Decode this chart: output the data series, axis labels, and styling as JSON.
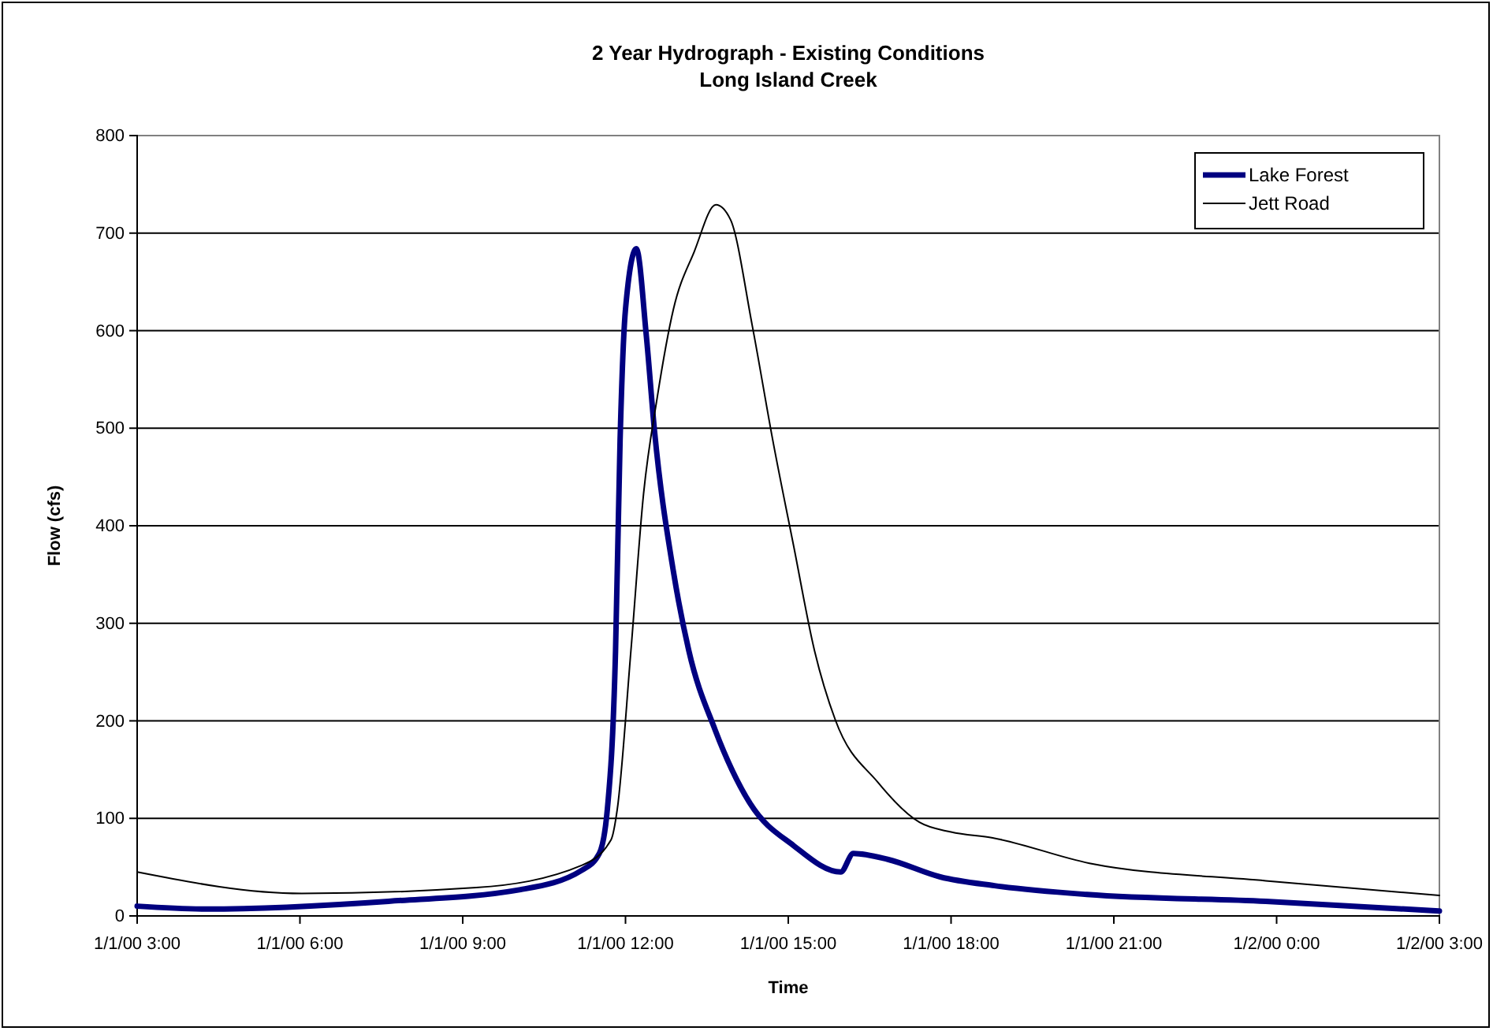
{
  "chart_data": {
    "type": "line",
    "title": "2 Year Hydrograph - Existing Conditions",
    "subtitle": "Long Island Creek",
    "xlabel": "Time",
    "ylabel": "Flow (cfs)",
    "xlim": [
      "2000-01-01T03:00",
      "2000-01-02T03:00"
    ],
    "xticks": [
      {
        "value": "2000-01-01T03:00",
        "label": "1/1/00 3:00"
      },
      {
        "value": "2000-01-01T06:00",
        "label": "1/1/00 6:00"
      },
      {
        "value": "2000-01-01T09:00",
        "label": "1/1/00 9:00"
      },
      {
        "value": "2000-01-01T12:00",
        "label": "1/1/00 12:00"
      },
      {
        "value": "2000-01-01T15:00",
        "label": "1/1/00 15:00"
      },
      {
        "value": "2000-01-01T18:00",
        "label": "1/1/00 18:00"
      },
      {
        "value": "2000-01-01T21:00",
        "label": "1/1/00 21:00"
      },
      {
        "value": "2000-01-02T00:00",
        "label": "1/2/00 0:00"
      },
      {
        "value": "2000-01-02T03:00",
        "label": "1/2/00 3:00"
      }
    ],
    "ylim": [
      0,
      800
    ],
    "yticks": [
      0,
      100,
      200,
      300,
      400,
      500,
      600,
      700,
      800
    ],
    "grid": "y",
    "legend": "top right",
    "marker": "none",
    "line_style": "solid",
    "series": [
      {
        "name": "Lake Forest",
        "color": "#000080",
        "x": [
          "2000-01-01T03:00",
          "2000-01-01T04:16",
          "2000-01-01T07:38",
          "2000-01-01T10:04",
          "2000-01-01T11:12",
          "2000-01-01T11:31",
          "2000-01-01T11:40",
          "2000-01-01T11:49",
          "2000-01-01T11:54",
          "2000-01-01T12:00",
          "2000-01-01T12:12",
          "2000-01-01T12:23",
          "2000-01-01T12:32",
          "2000-01-01T12:53",
          "2000-01-01T13:10",
          "2000-01-01T13:39",
          "2000-01-01T14:18",
          "2000-01-01T15:06",
          "2000-01-01T15:58",
          "2000-01-01T16:12",
          "2000-01-01T16:50",
          "2000-01-01T17:48",
          "2000-01-01T18:48",
          "2000-01-01T20:30",
          "2000-01-01T23:48",
          "2000-01-02T03:00"
        ],
        "values": [
          10,
          7,
          15,
          27,
          47,
          64,
          110,
          272,
          487,
          622,
          684,
          595,
          498,
          353,
          272,
          191,
          115,
          72,
          45,
          64,
          58,
          40,
          31,
          22,
          15,
          5
        ]
      },
      {
        "name": "Jett Road",
        "color": "#000000",
        "x": [
          "2000-01-01T03:00",
          "2000-01-01T06:02",
          "2000-01-01T09:15",
          "2000-01-01T11:12",
          "2000-01-01T11:44",
          "2000-01-01T11:51",
          "2000-01-01T12:06",
          "2000-01-01T12:20",
          "2000-01-01T12:35",
          "2000-01-01T12:53",
          "2000-01-01T13:16",
          "2000-01-01T13:40",
          "2000-01-01T13:56",
          "2000-01-01T14:20",
          "2000-01-01T14:43",
          "2000-01-01T15:06",
          "2000-01-01T15:29",
          "2000-01-01T15:52",
          "2000-01-01T16:39",
          "2000-01-01T17:25",
          "2000-01-01T18:00",
          "2000-01-01T18:46",
          "2000-01-01T20:33",
          "2000-01-01T23:48",
          "2000-01-02T03:00"
        ],
        "values": [
          45,
          23,
          29,
          52,
          78,
          110,
          272,
          433,
          531,
          622,
          681,
          729,
          714,
          606,
          487,
          379,
          272,
          201,
          137,
          96,
          86,
          80,
          54,
          36,
          21
        ]
      }
    ]
  }
}
